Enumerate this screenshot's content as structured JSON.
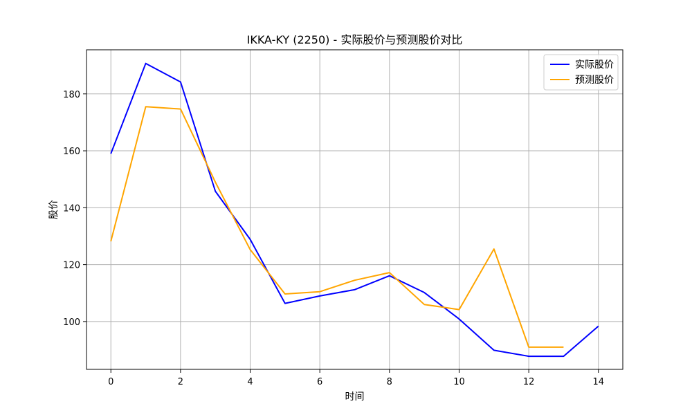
{
  "chart_data": {
    "type": "line",
    "title": "IKKA-KY (2250) - 实际股价与预测股价对比",
    "xlabel": "时间",
    "ylabel": "股价",
    "xlim": [
      -0.7,
      14.7
    ],
    "ylim": [
      83.2,
      195.5
    ],
    "x_ticks": [
      0,
      2,
      4,
      6,
      8,
      10,
      12,
      14
    ],
    "y_ticks": [
      100,
      120,
      140,
      160,
      180
    ],
    "grid": true,
    "legend_position": "top-right",
    "series": [
      {
        "name": "实际股价",
        "color": "#0000ff",
        "x": [
          0,
          1,
          2,
          3,
          4,
          5,
          6,
          7,
          8,
          9,
          10,
          11,
          12,
          13,
          14
        ],
        "y": [
          159.0,
          190.7,
          184.2,
          145.8,
          128.9,
          106.4,
          109.0,
          111.2,
          116.1,
          110.2,
          100.9,
          89.9,
          87.8,
          87.8,
          98.4
        ]
      },
      {
        "name": "预测股价",
        "color": "#ffa500",
        "x": [
          0,
          1,
          2,
          3,
          4,
          5,
          6,
          7,
          8,
          9,
          10,
          11,
          12,
          13
        ],
        "y": [
          128.2,
          175.5,
          174.7,
          149.0,
          125.3,
          109.7,
          110.5,
          114.5,
          117.2,
          106.0,
          104.2,
          125.5,
          91.0,
          91.0
        ]
      }
    ]
  }
}
